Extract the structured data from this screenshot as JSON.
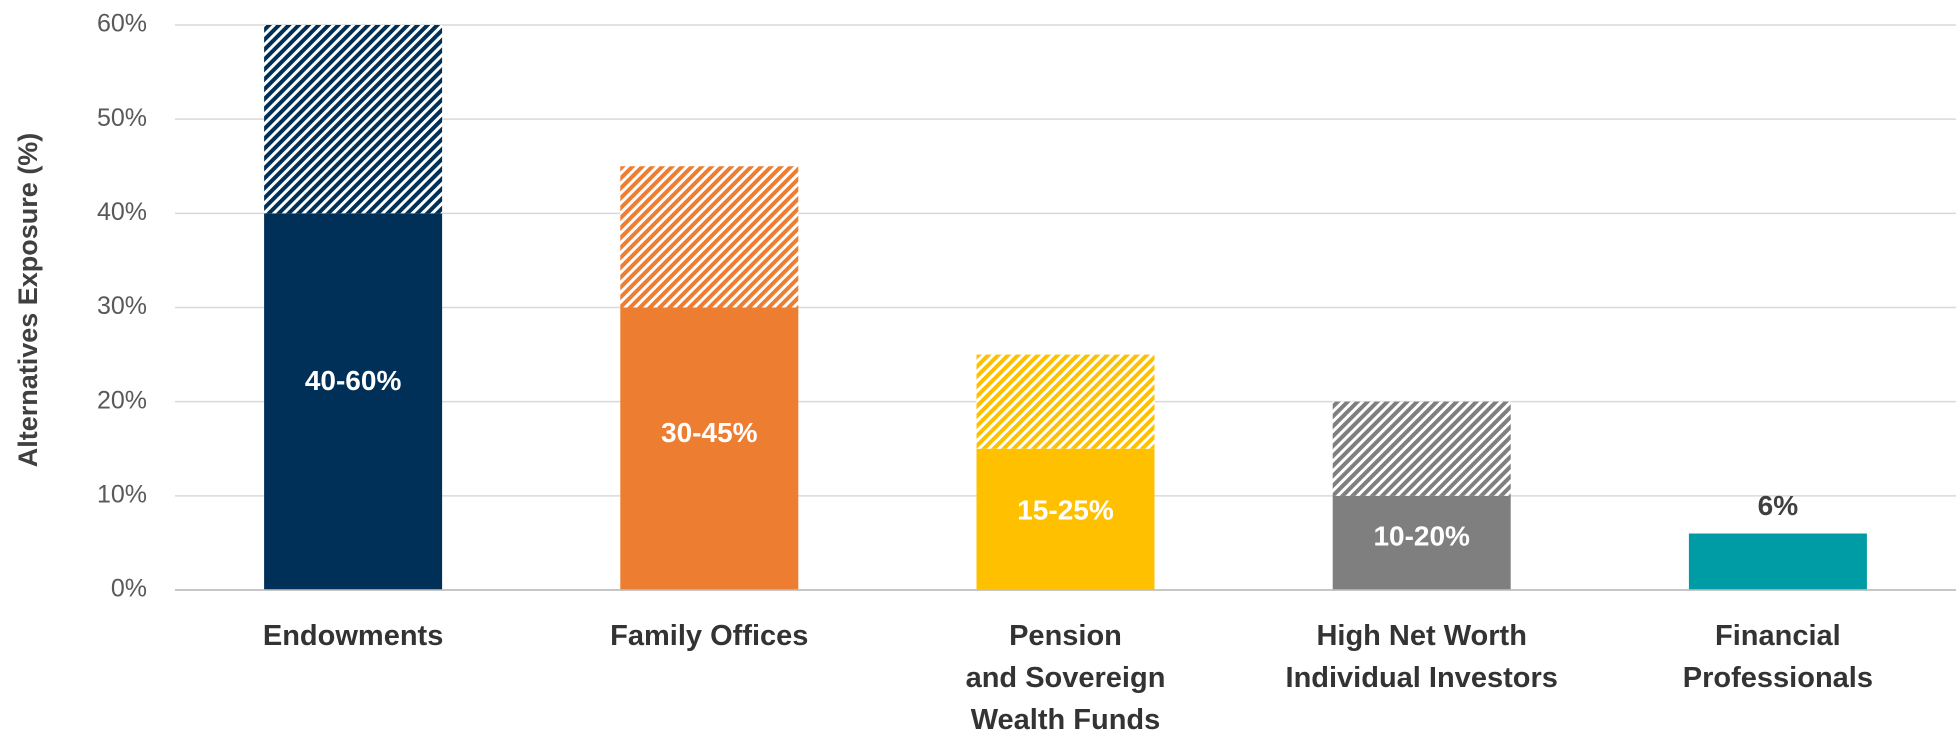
{
  "chart_data": {
    "type": "bar",
    "stacked": true,
    "ylabel": "Alternatives Exposure (%)",
    "categories": [
      "Endowments",
      "Family Offices",
      "Pension\nand Sovereign\nWealth Funds",
      "High Net Worth\nIndividual Investors",
      "Financial\nProfessionals"
    ],
    "colors": [
      "#003057",
      "#ed7d31",
      "#ffc000",
      "#7f7f7f",
      "#009ca6"
    ],
    "series": [
      {
        "values": [
          40,
          30,
          15,
          10,
          6
        ],
        "value_labels": [
          "40-60%",
          "30-45%",
          "15-25%",
          "10-20%",
          "6%"
        ],
        "pattern": "solid"
      },
      {
        "values": [
          20,
          15,
          10,
          10,
          null
        ],
        "pattern": "hatch"
      }
    ],
    "ylim": [
      0,
      60
    ],
    "yticks": [
      {
        "value": 0,
        "label": "0%"
      },
      {
        "value": 10,
        "label": "10%"
      },
      {
        "value": 20,
        "label": "20%"
      },
      {
        "value": 30,
        "label": "30%"
      },
      {
        "value": 40,
        "label": "40%"
      },
      {
        "value": 50,
        "label": "50%"
      },
      {
        "value": 60,
        "label": "60%"
      }
    ],
    "grid": true
  }
}
